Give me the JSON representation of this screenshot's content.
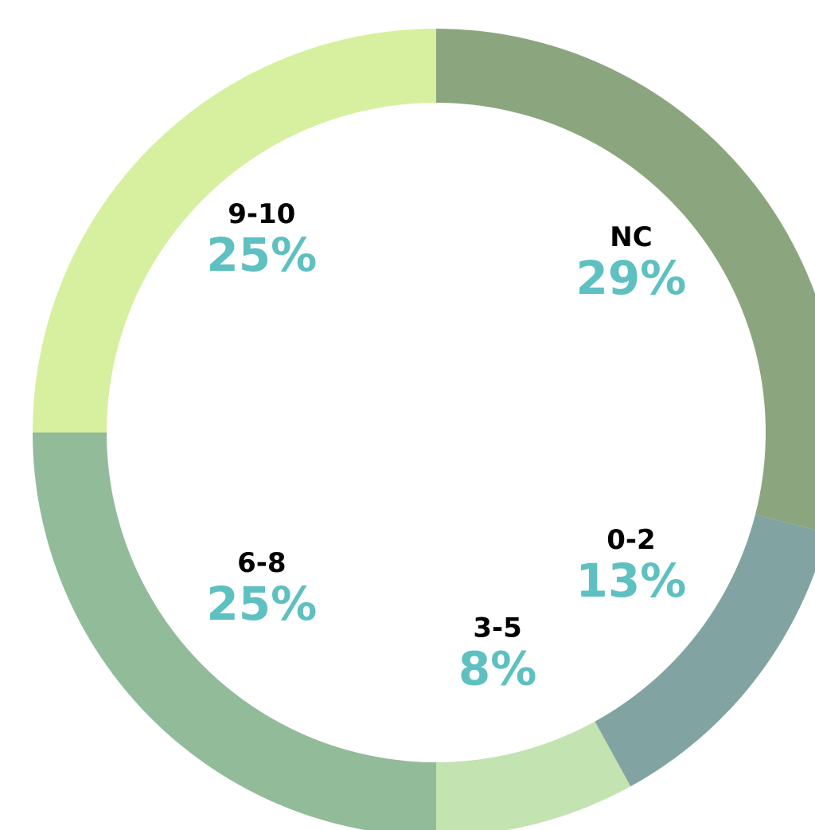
{
  "chart_data": {
    "type": "donut",
    "categories": [
      "NC",
      "0-2",
      "3-5",
      "6-8",
      "9-10"
    ],
    "values": [
      29,
      13,
      8,
      25,
      25
    ],
    "value_labels": [
      "29%",
      "13%",
      "8%",
      "25%",
      "25%"
    ],
    "colors": [
      "#8ba67f",
      "#81a4a3",
      "#c3e3b0",
      "#92bb9a",
      "#d6f0a0"
    ]
  }
}
